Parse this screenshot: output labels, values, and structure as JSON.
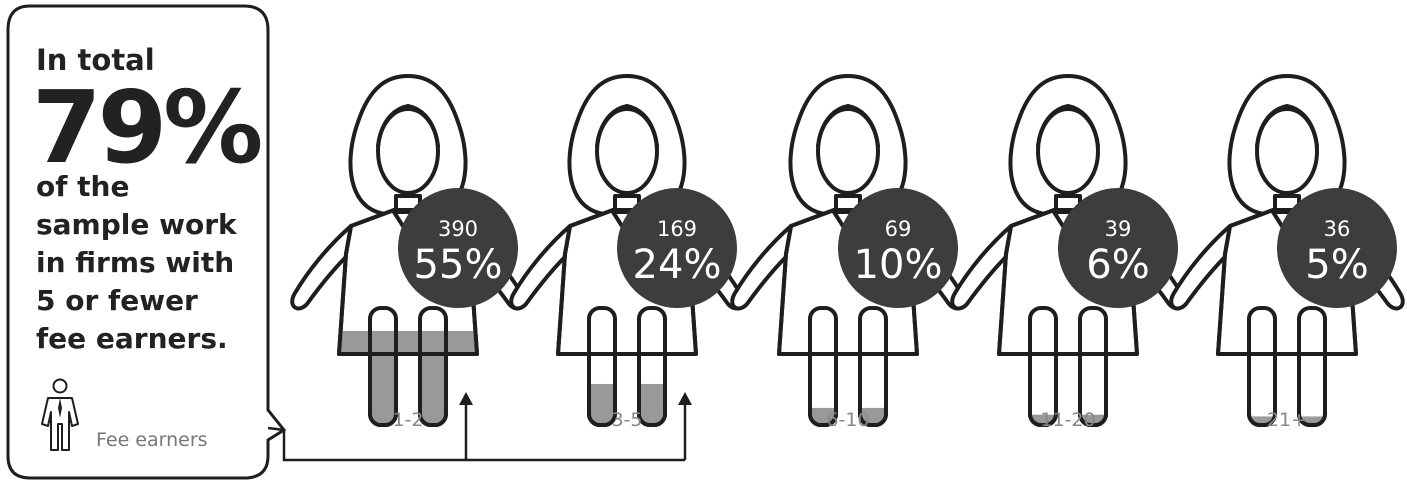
{
  "callout": {
    "heading": "In total",
    "big_value": "79%",
    "body_lines": [
      "of the",
      "sample work",
      "in firms with",
      "5 or fewer",
      "fee earners."
    ],
    "legend_label": "Fee earners",
    "legend_icon": "fee-earner-person-icon"
  },
  "chart_data": {
    "type": "pictograph",
    "value_unit": "%",
    "categories": [
      "1-2",
      "3-5",
      "6-10",
      "11-20",
      "21+"
    ],
    "counts": [
      390,
      169,
      69,
      39,
      36
    ],
    "percentages": [
      55,
      24,
      10,
      6,
      5
    ],
    "percent_labels": [
      "55%",
      "24%",
      "10%",
      "6%",
      "5%"
    ],
    "count_labels": [
      "390",
      "169",
      "69",
      "39",
      "36"
    ],
    "fill_scale_max": 100,
    "bracketed_categories": [
      "1-2",
      "3-5"
    ]
  },
  "colors": {
    "fill": "#999999",
    "badge": "#3d3d3d",
    "outline": "#1e1e1e",
    "label": "#888888"
  }
}
